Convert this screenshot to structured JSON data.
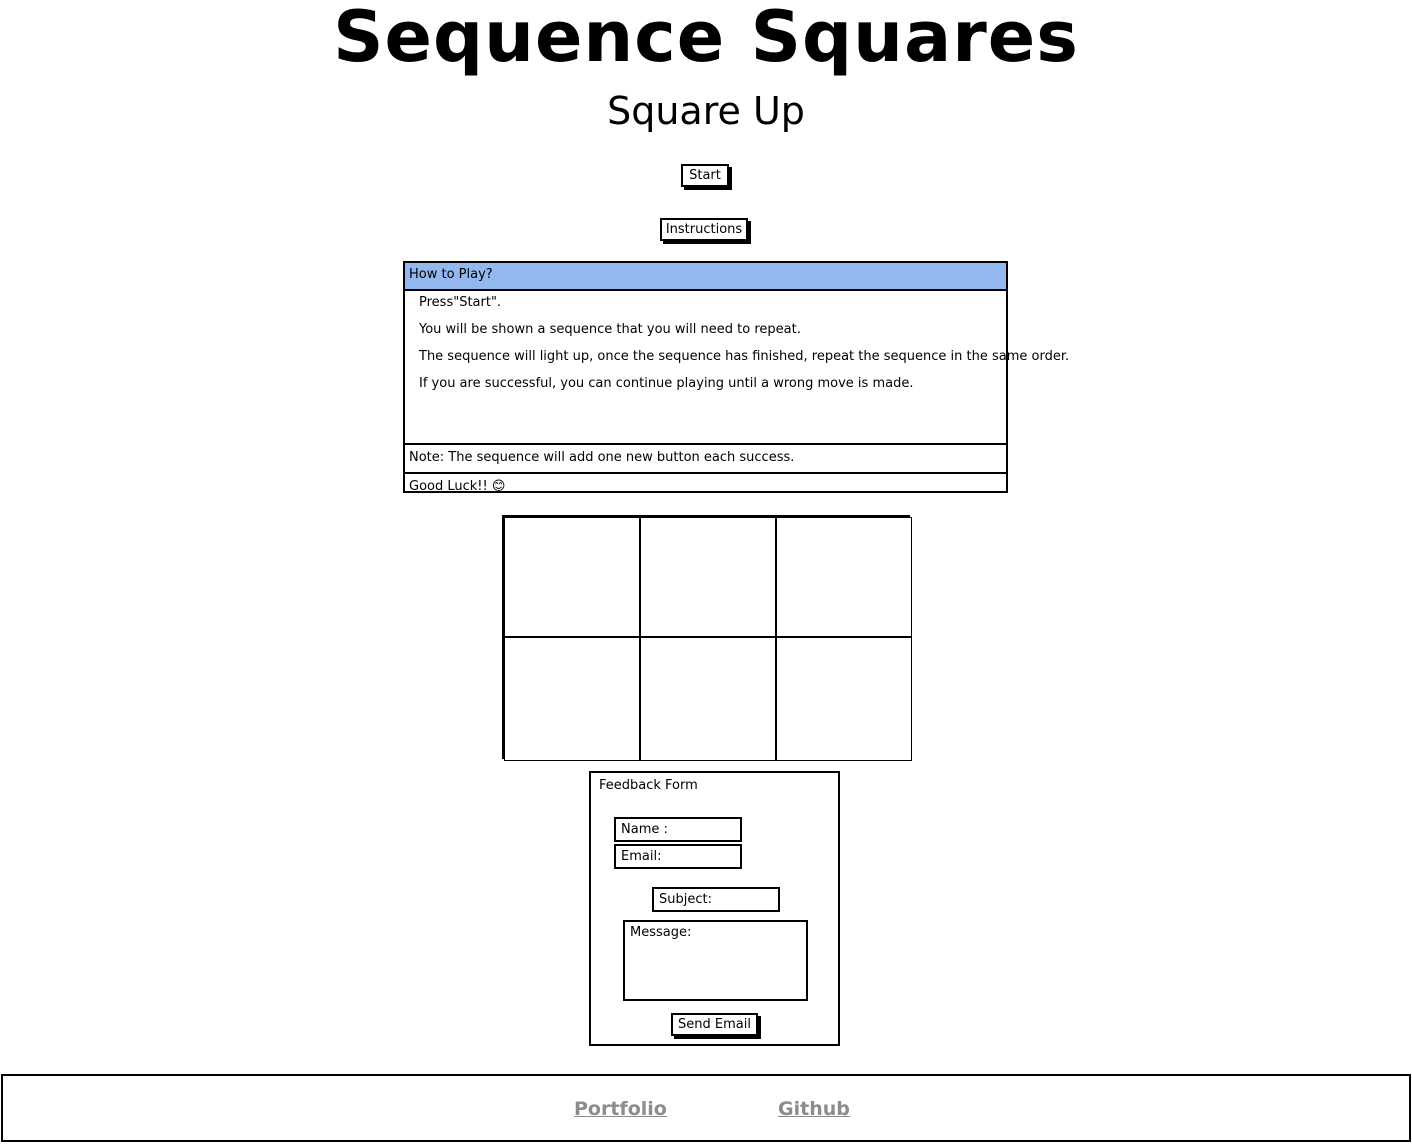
{
  "header": {
    "title": "Sequence Squares",
    "subtitle": "Square Up"
  },
  "controls": {
    "start_label": "Start",
    "instructions_label": "Instructions"
  },
  "instructions": {
    "heading": "How to Play?",
    "steps": [
      "Press\"Start\".",
      "You will be shown a sequence that you will need to repeat.",
      "The sequence will light up, once the sequence has finished, repeat the sequence in the same order.",
      "If you are successful, you can continue playing until a wrong move is made."
    ],
    "note": "Note: The sequence will add one new button each success.",
    "good_luck": "Good Luck!! 😊",
    "header_color": "#93b8f0"
  },
  "feedback": {
    "title": "Feedback Form",
    "name_placeholder": "Name :",
    "email_placeholder": "Email:",
    "subject_placeholder": "Subject:",
    "message_placeholder": "Message:",
    "send_label": "Send Email"
  },
  "footer": {
    "links": [
      "Portfolio",
      "Github"
    ],
    "link_color": "#8c8c8c"
  }
}
